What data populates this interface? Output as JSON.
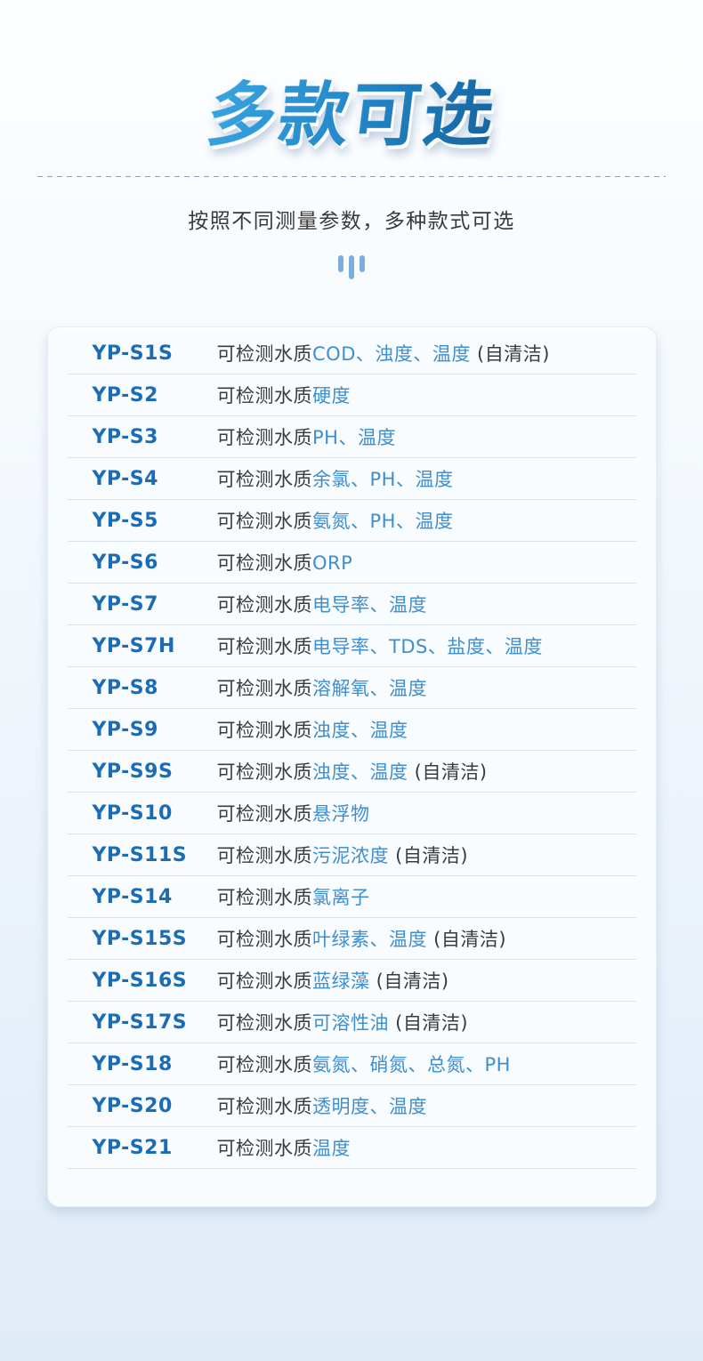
{
  "header": {
    "title": "多款可选",
    "subtitle": "按照不同测量参数，多种款式可选",
    "decor_icon": "triple-bars-icon"
  },
  "colors": {
    "title_gradient_start": "#38a5e0",
    "title_gradient_end": "#15649e",
    "model_name_blue": "#1b6cb5",
    "param_blue": "#3e8ed0",
    "body_text": "#3b3b3b",
    "bars_icon_blue": "#7badde",
    "card_background": "#f9fcfe",
    "page_background_bottom": "#e0ebf8"
  },
  "table": {
    "models": [
      {
        "model": "YP-S1S",
        "prefix": "可检测水质",
        "params": "COD、浊度、温度",
        "suffix": " (自清洁)"
      },
      {
        "model": "YP-S2",
        "prefix": "可检测水质",
        "params": "硬度",
        "suffix": ""
      },
      {
        "model": "YP-S3",
        "prefix": "可检测水质",
        "params": "PH、温度",
        "suffix": ""
      },
      {
        "model": "YP-S4",
        "prefix": "可检测水质",
        "params": "余氯、PH、温度",
        "suffix": ""
      },
      {
        "model": "YP-S5",
        "prefix": "可检测水质",
        "params": "氨氮、PH、温度",
        "suffix": ""
      },
      {
        "model": "YP-S6",
        "prefix": "可检测水质",
        "params": "ORP",
        "suffix": ""
      },
      {
        "model": "YP-S7",
        "prefix": "可检测水质",
        "params": "电导率、温度",
        "suffix": ""
      },
      {
        "model": "YP-S7H",
        "prefix": "可检测水质",
        "params": "电导率、TDS、盐度、温度",
        "suffix": ""
      },
      {
        "model": "YP-S8",
        "prefix": "可检测水质",
        "params": "溶解氧、温度",
        "suffix": ""
      },
      {
        "model": "YP-S9",
        "prefix": "可检测水质",
        "params": "浊度、温度",
        "suffix": ""
      },
      {
        "model": "YP-S9S",
        "prefix": "可检测水质",
        "params": "浊度、温度",
        "suffix": " (自清洁)"
      },
      {
        "model": "YP-S10",
        "prefix": "可检测水质",
        "params": "悬浮物",
        "suffix": ""
      },
      {
        "model": "YP-S11S",
        "prefix": "可检测水质",
        "params": "污泥浓度",
        "suffix": " (自清洁)"
      },
      {
        "model": "YP-S14",
        "prefix": "可检测水质",
        "params": "氯离子",
        "suffix": ""
      },
      {
        "model": "YP-S15S",
        "prefix": "可检测水质",
        "params": "叶绿素、温度",
        "suffix": " (自清洁)"
      },
      {
        "model": "YP-S16S",
        "prefix": "可检测水质",
        "params": "蓝绿藻",
        "suffix": " (自清洁)"
      },
      {
        "model": "YP-S17S",
        "prefix": "可检测水质",
        "params": "可溶性油",
        "suffix": " (自清洁)"
      },
      {
        "model": "YP-S18",
        "prefix": "可检测水质",
        "params": "氨氮、硝氮、总氮、PH",
        "suffix": ""
      },
      {
        "model": "YP-S20",
        "prefix": "可检测水质",
        "params": "透明度、温度",
        "suffix": ""
      },
      {
        "model": "YP-S21",
        "prefix": "可检测水质",
        "params": "温度",
        "suffix": ""
      }
    ]
  }
}
